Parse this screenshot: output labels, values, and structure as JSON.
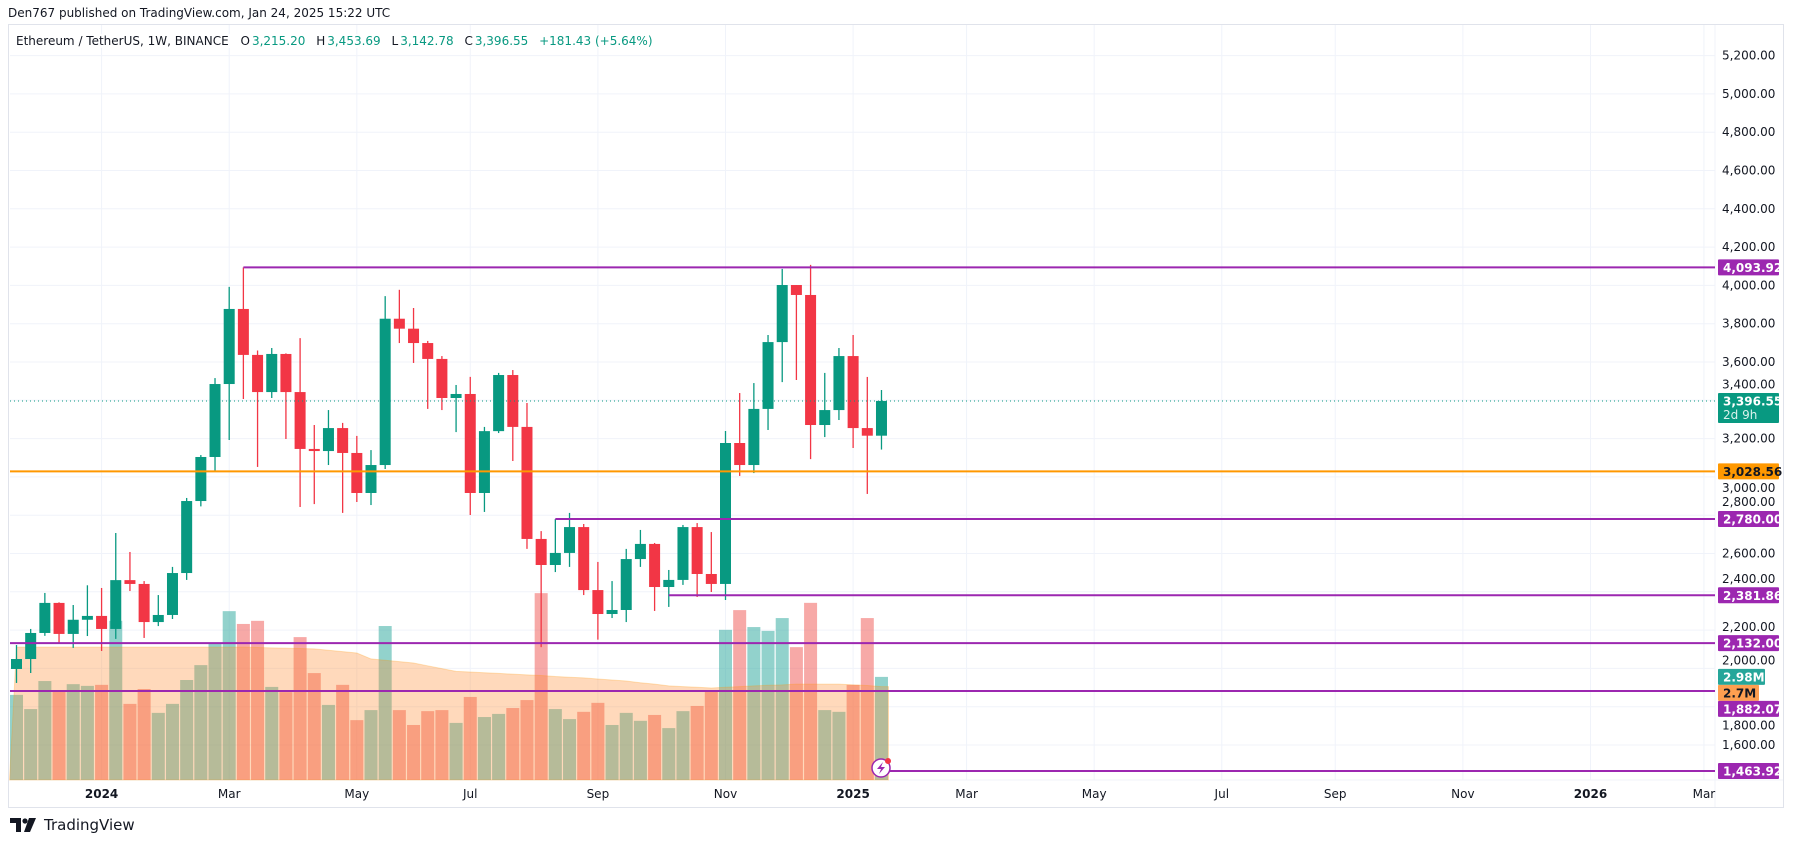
{
  "publisher_line": "Den767 published on TradingView.com, Jan 24, 2025 15:22 UTC",
  "legend": {
    "symbol": "Ethereum / TetherUS, 1W, BINANCE",
    "o_label": "O",
    "o_value": "3,215.20",
    "h_label": "H",
    "h_value": "3,453.69",
    "l_label": "L",
    "l_value": "3,142.78",
    "c_label": "C",
    "c_value": "3,396.55",
    "change": "+181.43 (+5.64%)"
  },
  "watermark": "TradingView",
  "colors": {
    "up": "#089981",
    "down": "#f23645",
    "level": "#9c27b0",
    "support": "#ff9800",
    "volume_ma": "#ff9800"
  },
  "chart_data": {
    "type": "candlestick",
    "symbol": "ETHUSDT",
    "interval": "1W",
    "ylim": [
      1400,
      5300
    ],
    "price_ticks": [
      "5,200.00",
      "5,000.00",
      "4,800.00",
      "4,600.00",
      "4,400.00",
      "4,200.00",
      "4,000.00",
      "3,800.00",
      "3,600.00",
      "3,400.00",
      "3,200.00",
      "3,000.00",
      "2,800.00",
      "2,600.00",
      "2,400.00",
      "2,200.00",
      "2,000.00",
      "1,800.00",
      "1,600.00"
    ],
    "time_labels": [
      {
        "label": "2024",
        "date": "2024-01-01",
        "bold": true
      },
      {
        "label": "Mar",
        "date": "2024-03-04"
      },
      {
        "label": "May",
        "date": "2024-05-06"
      },
      {
        "label": "Jul",
        "date": "2024-07-01"
      },
      {
        "label": "Sep",
        "date": "2024-09-02"
      },
      {
        "label": "Nov",
        "date": "2024-11-04"
      },
      {
        "label": "2025",
        "date": "2025-01-06",
        "bold": true
      },
      {
        "label": "Mar",
        "date": "2025-03-03"
      },
      {
        "label": "May",
        "date": "2025-05-05"
      },
      {
        "label": "Jul",
        "date": "2025-07-07"
      },
      {
        "label": "Sep",
        "date": "2025-09-01"
      },
      {
        "label": "Nov",
        "date": "2025-11-03"
      },
      {
        "label": "2026",
        "date": "2026-01-05",
        "bold": true
      },
      {
        "label": "Mar",
        "date": "2026-03-02"
      }
    ],
    "first_bar": "2023-11-20",
    "columns": [
      "date",
      "open",
      "high",
      "low",
      "close",
      "volume_M"
    ],
    "candles": [
      [
        "2023-11-20",
        1997,
        2122,
        1924,
        2049,
        2.46
      ],
      [
        "2023-11-27",
        2049,
        2206,
        1976,
        2185,
        2.05
      ],
      [
        "2023-12-04",
        2185,
        2394,
        2170,
        2342,
        2.86
      ],
      [
        "2023-12-11",
        2342,
        2345,
        2132,
        2180,
        2.6
      ],
      [
        "2023-12-18",
        2180,
        2331,
        2107,
        2254,
        2.77
      ],
      [
        "2023-12-25",
        2254,
        2434,
        2169,
        2274,
        2.72
      ],
      [
        "2024-01-01",
        2274,
        2420,
        2091,
        2206,
        2.75
      ],
      [
        "2024-01-08",
        2206,
        2707,
        2154,
        2461,
        4.6
      ],
      [
        "2024-01-15",
        2461,
        2608,
        2404,
        2441,
        2.2
      ],
      [
        "2024-01-22",
        2441,
        2456,
        2159,
        2242,
        2.63
      ],
      [
        "2024-01-29",
        2242,
        2383,
        2221,
        2279,
        1.94
      ],
      [
        "2024-02-05",
        2279,
        2530,
        2258,
        2498,
        2.2
      ],
      [
        "2024-02-12",
        2498,
        2890,
        2462,
        2874,
        2.89
      ],
      [
        "2024-02-19",
        2874,
        3114,
        2846,
        3104,
        3.32
      ],
      [
        "2024-02-26",
        3104,
        3516,
        3031,
        3485,
        3.93
      ],
      [
        "2024-03-04",
        3485,
        3992,
        3193,
        3877,
        4.88
      ],
      [
        "2024-03-11",
        3877,
        4093.92,
        3407,
        3637,
        4.51
      ],
      [
        "2024-03-18",
        3637,
        3660,
        3052,
        3443,
        4.6
      ],
      [
        "2024-03-25",
        3443,
        3673,
        3412,
        3642,
        2.69
      ],
      [
        "2024-04-01",
        3642,
        3645,
        3198,
        3443,
        2.54
      ],
      [
        "2024-04-08",
        3443,
        3725,
        2843,
        3146,
        4.13
      ],
      [
        "2024-04-15",
        3146,
        3271,
        2858,
        3135,
        3.09
      ],
      [
        "2024-04-22",
        3135,
        3349,
        3062,
        3255,
        2.17
      ],
      [
        "2024-04-29",
        3255,
        3282,
        2812,
        3125,
        2.75
      ],
      [
        "2024-05-06",
        3125,
        3214,
        2869,
        2916,
        1.73
      ],
      [
        "2024-05-13",
        2916,
        3140,
        2853,
        3062,
        2.02
      ],
      [
        "2024-05-20",
        3062,
        3944,
        3041,
        3826,
        4.45
      ],
      [
        "2024-05-27",
        3826,
        3977,
        3699,
        3774,
        2.02
      ],
      [
        "2024-06-03",
        3774,
        3882,
        3595,
        3699,
        1.59
      ],
      [
        "2024-06-10",
        3699,
        3710,
        3355,
        3616,
        1.99
      ],
      [
        "2024-06-17",
        3616,
        3631,
        3349,
        3412,
        2.02
      ],
      [
        "2024-06-24",
        3412,
        3480,
        3234,
        3433,
        1.65
      ],
      [
        "2024-07-01",
        3433,
        3522,
        2801,
        2916,
        2.4
      ],
      [
        "2024-07-08",
        2916,
        3261,
        2817,
        3239,
        1.82
      ],
      [
        "2024-07-15",
        3239,
        3543,
        3229,
        3532,
        1.91
      ],
      [
        "2024-07-22",
        3532,
        3558,
        3083,
        3261,
        2.08
      ],
      [
        "2024-07-29",
        3261,
        3386,
        2624,
        2676,
        2.31
      ],
      [
        "2024-08-05",
        2676,
        2717,
        2111,
        2540,
        5.4
      ],
      [
        "2024-08-12",
        2540,
        2780,
        2503,
        2603,
        2.05
      ],
      [
        "2024-08-19",
        2603,
        2812,
        2530,
        2738,
        1.76
      ],
      [
        "2024-08-26",
        2738,
        2754,
        2383,
        2409,
        1.97
      ],
      [
        "2024-09-02",
        2409,
        2556,
        2150,
        2284,
        2.23
      ],
      [
        "2024-09-09",
        2284,
        2456,
        2263,
        2305,
        1.59
      ],
      [
        "2024-09-16",
        2305,
        2624,
        2242,
        2571,
        1.94
      ],
      [
        "2024-09-23",
        2571,
        2723,
        2530,
        2650,
        1.71
      ],
      [
        "2024-09-30",
        2650,
        2655,
        2300,
        2425,
        1.88
      ],
      [
        "2024-10-07",
        2425,
        2514,
        2321,
        2462,
        1.5
      ],
      [
        "2024-10-14",
        2462,
        2749,
        2436,
        2738,
        1.99
      ],
      [
        "2024-10-21",
        2738,
        2759,
        2373,
        2493,
        2.14
      ],
      [
        "2024-10-28",
        2493,
        2712,
        2399,
        2441,
        2.57
      ],
      [
        "2024-11-04",
        2441,
        3240,
        2357,
        3177,
        4.34
      ],
      [
        "2024-11-11",
        3177,
        3438,
        3005,
        3062,
        4.91
      ],
      [
        "2024-11-18",
        3062,
        3490,
        3020,
        3355,
        4.42
      ],
      [
        "2024-11-25",
        3355,
        3741,
        3245,
        3704,
        4.31
      ],
      [
        "2024-12-02",
        3704,
        4086,
        3495,
        4002,
        4.68
      ],
      [
        "2024-12-09",
        4002,
        4002,
        3506,
        3950,
        3.84
      ],
      [
        "2024-12-16",
        3950,
        4107,
        3093,
        3271,
        5.12
      ],
      [
        "2024-12-23",
        3271,
        3543,
        3208,
        3349,
        2.02
      ],
      [
        "2024-12-30",
        3349,
        3673,
        3297,
        3631,
        1.97
      ],
      [
        "2025-01-06",
        3631,
        3741,
        3151,
        3255,
        2.75
      ],
      [
        "2025-01-13",
        3255,
        3522,
        2911,
        3215.2,
        4.68
      ],
      [
        "2025-01-20",
        3215.2,
        3453.69,
        3142.78,
        3396.55,
        2.98
      ]
    ],
    "volume_ma_M": [
      3.84,
      3.84,
      3.84,
      3.84,
      3.84,
      3.84,
      3.84,
      3.84,
      3.84,
      3.84,
      3.84,
      3.84,
      3.84,
      3.84,
      3.84,
      3.84,
      3.84,
      3.83,
      3.82,
      3.81,
      3.8,
      3.79,
      3.75,
      3.71,
      3.67,
      3.5,
      3.46,
      3.42,
      3.38,
      3.3,
      3.22,
      3.14,
      3.12,
      3.1,
      3.08,
      3.06,
      3.04,
      3.02,
      2.99,
      2.97,
      2.95,
      2.92,
      2.89,
      2.86,
      2.81,
      2.77,
      2.72,
      2.7,
      2.68,
      2.66,
      2.68,
      2.7,
      2.72,
      2.74,
      2.75,
      2.77,
      2.77,
      2.77,
      2.77,
      2.75,
      2.73,
      2.7
    ],
    "levels": [
      {
        "price": 4093.92,
        "label": "4,093.92",
        "color": "#9c27b0",
        "from": "2024-03-11"
      },
      {
        "price": 3028.56,
        "label": "3,028.56",
        "color": "#ff9800",
        "from": null
      },
      {
        "price": 2780.0,
        "label": "2,780.00",
        "color": "#9c27b0",
        "from": "2024-08-12"
      },
      {
        "price": 2381.86,
        "label": "2,381.86",
        "color": "#9c27b0",
        "from": "2024-10-07"
      },
      {
        "price": 2132.0,
        "label": "2,132.00",
        "color": "#9c27b0",
        "from": null
      },
      {
        "price": 1882.07,
        "label": "1,882.07",
        "color": "#9c27b0",
        "from": null
      },
      {
        "price": 1463.92,
        "label": "1,463.92",
        "color": "#9c27b0",
        "from": "2025-01-20"
      }
    ],
    "last_price": {
      "price": 3396.55,
      "label": "3,396.55",
      "countdown": "2d 9h",
      "color": "#089981"
    },
    "volume_label": {
      "value": 2.98,
      "label": "2.98M",
      "color": "#26a69a"
    },
    "volume_ma_label": {
      "value": 2.7,
      "label": "2.7M",
      "color": "#ff9800"
    }
  }
}
